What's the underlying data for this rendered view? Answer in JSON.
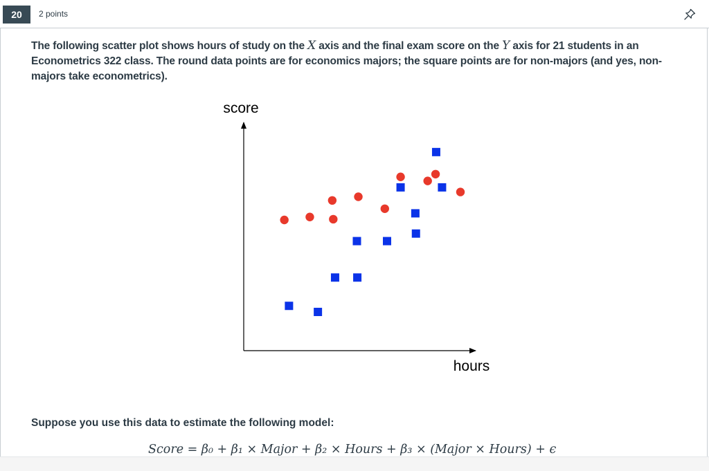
{
  "question": {
    "number": "20",
    "points": "2 points",
    "pin_icon": "pin-icon",
    "text_parts": [
      "The following scatter plot shows hours of study on the ",
      "X",
      " axis and the final exam score on the ",
      "Y",
      " axis for 21 students in an Econometrics 322 class. The round data points are for economics majors; the square points are for non-majors (and yes, non-majors take econometrics)."
    ],
    "suppose": "Suppose you use this data to estimate the following model:",
    "formula": "Score = β₀ + β₁ × Major + β₂ × Hours + β₃ × (Major × Hours) + ϵ"
  },
  "chart_data": {
    "type": "scatter",
    "xlabel": "hours",
    "ylabel": "score",
    "xlim": [
      0,
      100
    ],
    "ylim": [
      0,
      100
    ],
    "grid": false,
    "legend": "none",
    "series": [
      {
        "marker": "circle",
        "color": "#e8392b",
        "points": [
          {
            "x": 10.5,
            "y": 60.9
          },
          {
            "x": 23.1,
            "y": 62.5
          },
          {
            "x": 34.2,
            "y": 71.5
          },
          {
            "x": 34.7,
            "y": 61.3
          },
          {
            "x": 47.1,
            "y": 73.5
          },
          {
            "x": 60.2,
            "y": 67.0
          },
          {
            "x": 68.0,
            "y": 84.3
          },
          {
            "x": 81.4,
            "y": 82.1
          },
          {
            "x": 85.3,
            "y": 85.8
          },
          {
            "x": 97.6,
            "y": 76.1
          }
        ]
      },
      {
        "marker": "square",
        "color": "#0b33e8",
        "points": [
          {
            "x": 12.8,
            "y": 14.2
          },
          {
            "x": 27.1,
            "y": 10.9
          },
          {
            "x": 35.6,
            "y": 29.6
          },
          {
            "x": 46.6,
            "y": 29.6
          },
          {
            "x": 46.4,
            "y": 49.4
          },
          {
            "x": 61.3,
            "y": 49.4
          },
          {
            "x": 68.0,
            "y": 78.6
          },
          {
            "x": 75.3,
            "y": 64.5
          },
          {
            "x": 75.6,
            "y": 53.5
          },
          {
            "x": 85.6,
            "y": 97.8
          },
          {
            "x": 88.5,
            "y": 78.6
          }
        ]
      }
    ]
  }
}
